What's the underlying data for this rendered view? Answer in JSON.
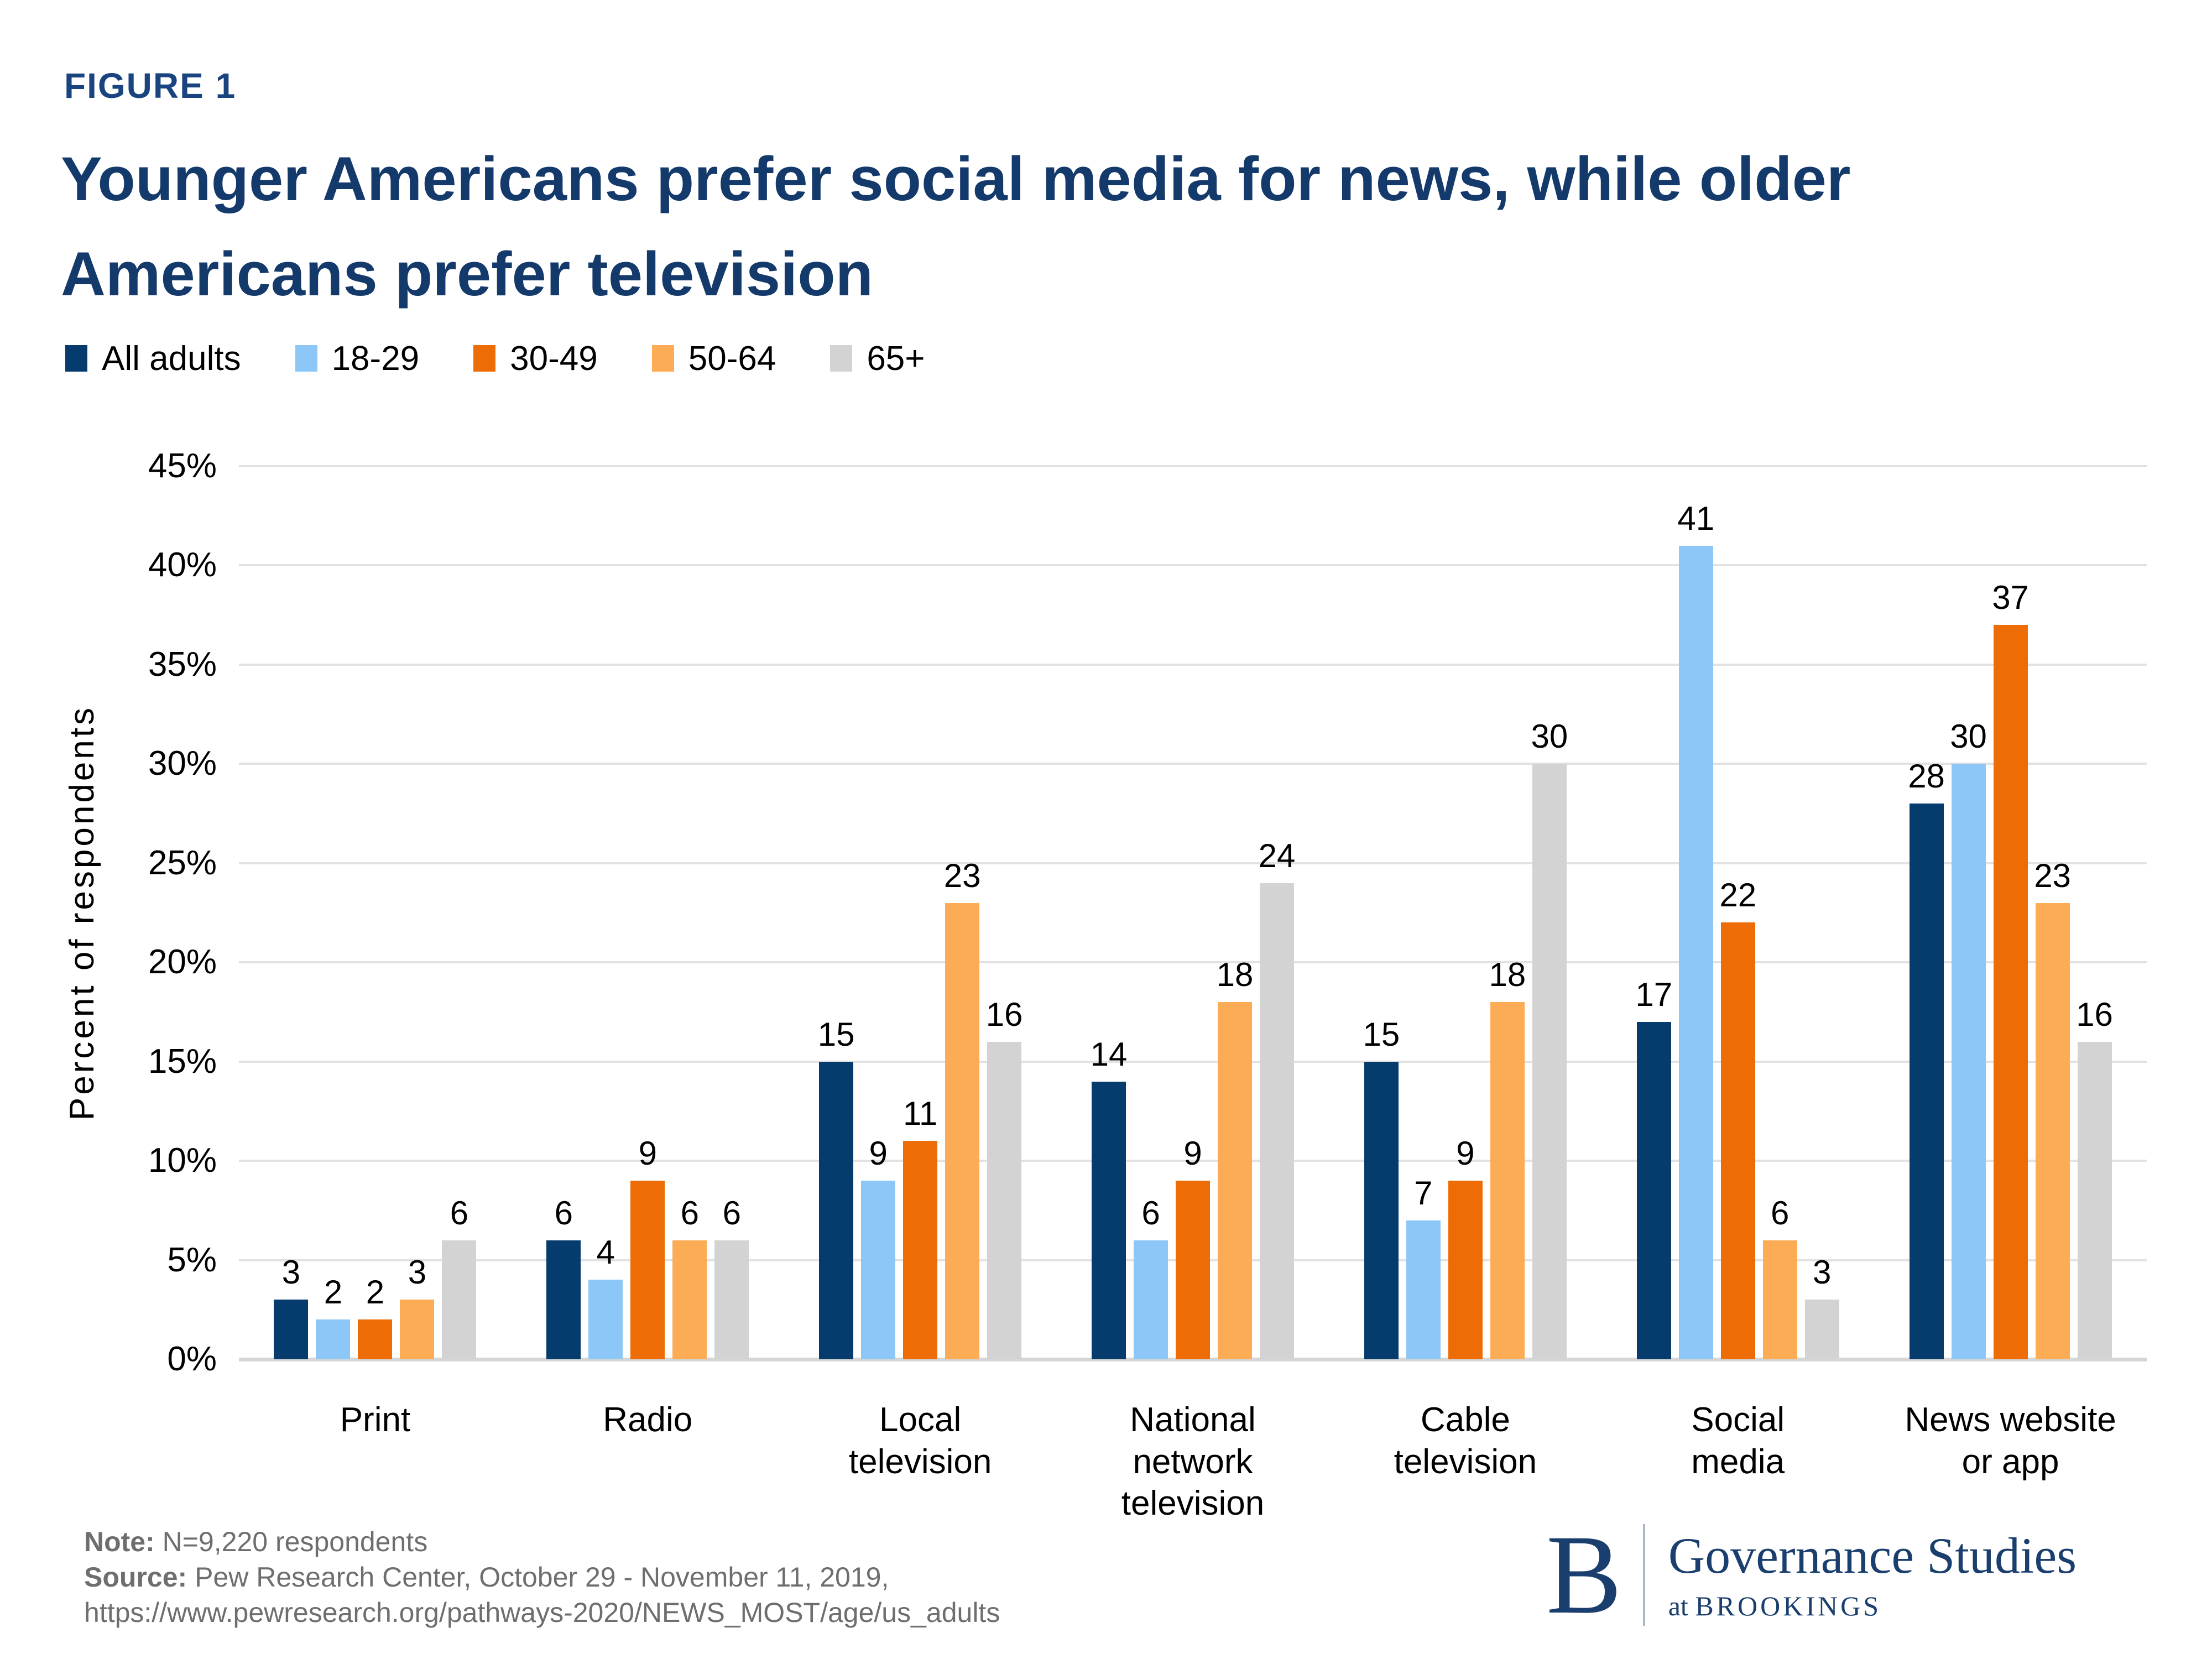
{
  "header": {
    "figure_label": "FIGURE 1",
    "title": "Younger Americans prefer social media for news, while older\nAmericans prefer television"
  },
  "chart_data": {
    "type": "bar",
    "title": "Younger Americans prefer social media for news, while older Americans prefer television",
    "categories": [
      "Print",
      "Radio",
      "Local television",
      "National network television",
      "Cable television",
      "Social media",
      "News website or app"
    ],
    "categories_wrapped": [
      "Print",
      "Radio",
      "Local\ntelevision",
      "National\nnetwork\ntelevision",
      "Cable\ntelevision",
      "Social\nmedia",
      "News website\nor app"
    ],
    "series": [
      {
        "name": "All adults",
        "color": "#053C6D",
        "values": [
          3,
          6,
          15,
          14,
          15,
          17,
          28
        ]
      },
      {
        "name": "18-29",
        "color": "#8CC7F7",
        "values": [
          2,
          4,
          9,
          6,
          7,
          41,
          30
        ]
      },
      {
        "name": "30-49",
        "color": "#ED6C05",
        "values": [
          2,
          9,
          11,
          9,
          9,
          22,
          37
        ]
      },
      {
        "name": "50-64",
        "color": "#FBAC55",
        "values": [
          3,
          6,
          23,
          18,
          18,
          6,
          23
        ]
      },
      {
        "name": "65+",
        "color": "#D3D3D3",
        "values": [
          6,
          6,
          16,
          24,
          30,
          3,
          16
        ]
      }
    ],
    "xlabel": "",
    "ylabel": "Percent of respondents",
    "ylim": [
      0,
      45
    ],
    "ytick_step": 5,
    "ytick_suffix": "%",
    "grid": true,
    "legend_position": "top-left"
  },
  "footer": {
    "note_label": "Note:",
    "note_text": "N=9,220 respondents",
    "source_label": "Source:",
    "source_text": "Pew Research Center, October 29 - November 11, 2019,",
    "source_url": "https://www.pewresearch.org/pathways-2020/NEWS_MOST/age/us_adults"
  },
  "logo": {
    "letter": "B",
    "name": "Governance Studies",
    "sub_at": "at",
    "sub_org": "BROOKINGS"
  },
  "colors": {
    "title_navy": "#14396B",
    "figure_label_navy": "#1A4480",
    "logo_navy": "#1A3E6E",
    "gridline": "#E2E2E2",
    "baseline": "#D6D6D6",
    "note_gray": "#6E6E6E"
  }
}
